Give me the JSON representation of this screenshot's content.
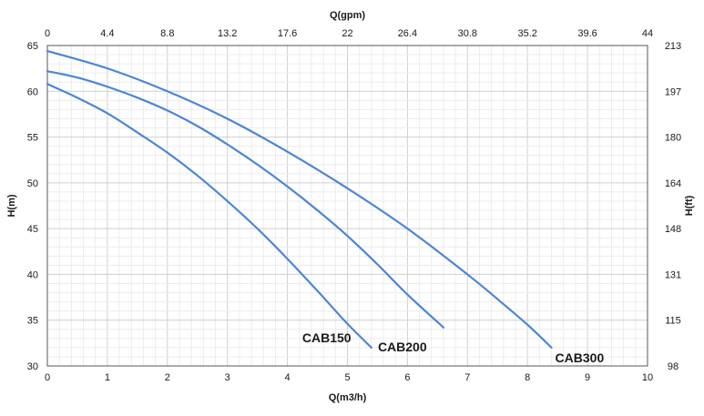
{
  "chart_data": {
    "type": "line",
    "title": "",
    "xlabel": "Q(m3/h)",
    "ylabel": "H(m)",
    "x2label": "Q(gpm)",
    "y2label": "H(ft)",
    "xlim": [
      0,
      10
    ],
    "ylim": [
      30,
      65
    ],
    "x_ticks": [
      0,
      1,
      2,
      3,
      4,
      5,
      6,
      7,
      8,
      9,
      10
    ],
    "y_ticks": [
      30,
      35,
      40,
      45,
      50,
      55,
      60,
      65
    ],
    "x2_tick_labels": [
      "0",
      "4.4",
      "8.8",
      "13.2",
      "17.6",
      "22",
      "26.4",
      "30.8",
      "35.2",
      "39.6",
      "44"
    ],
    "y2_tick_labels": [
      "98",
      "115",
      "131",
      "148",
      "164",
      "180",
      "197",
      "213"
    ],
    "grid": true,
    "line_color": "#4a86d8",
    "series": [
      {
        "name": "CAB150",
        "x": [
          0,
          0.5,
          1,
          1.5,
          2,
          2.5,
          3,
          3.5,
          4,
          4.5,
          5,
          5.4
        ],
        "y": [
          60.8,
          59.3,
          57.6,
          55.5,
          53.3,
          50.8,
          48.0,
          45.0,
          41.7,
          38.2,
          34.6,
          32.0
        ]
      },
      {
        "name": "CAB200",
        "x": [
          0,
          0.5,
          1,
          1.5,
          2,
          2.5,
          3,
          3.5,
          4,
          4.5,
          5,
          5.5,
          6,
          6.6
        ],
        "y": [
          62.2,
          61.5,
          60.5,
          59.3,
          57.9,
          56.2,
          54.2,
          52.0,
          49.6,
          47.0,
          44.2,
          41.1,
          37.8,
          34.2
        ]
      },
      {
        "name": "CAB300",
        "x": [
          0,
          1,
          2,
          3,
          4,
          5,
          6,
          7,
          7.5,
          8,
          8.4
        ],
        "y": [
          64.4,
          62.5,
          60.0,
          57.0,
          53.4,
          49.4,
          45.0,
          40.0,
          37.3,
          34.5,
          32.0
        ]
      }
    ]
  }
}
